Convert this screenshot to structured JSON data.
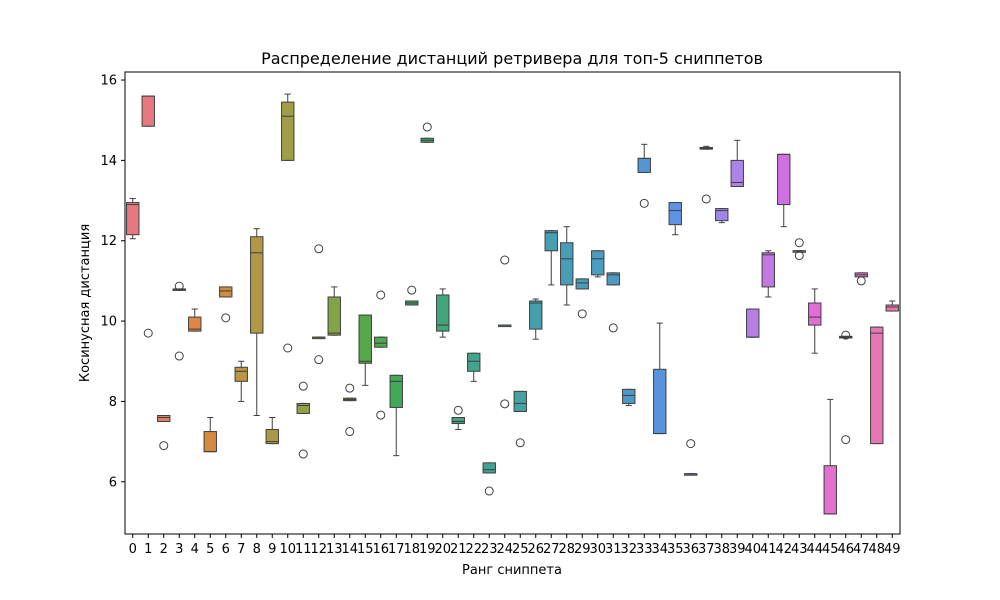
{
  "chart_data": {
    "type": "box",
    "title": "Распределение дистанций ретривера для топ-5 сниппетов",
    "xlabel": "Ранг сниппета",
    "ylabel": "Косинусная дистанция",
    "ylim": [
      4.7,
      16.2
    ],
    "yticks": [
      6,
      8,
      10,
      12,
      14,
      16
    ],
    "grid": false,
    "legend": "none",
    "categories": [
      "0",
      "1",
      "2",
      "3",
      "4",
      "5",
      "6",
      "7",
      "8",
      "9",
      "10",
      "11",
      "12",
      "13",
      "14",
      "15",
      "16",
      "17",
      "18",
      "19",
      "20",
      "21",
      "22",
      "23",
      "24",
      "25",
      "26",
      "27",
      "28",
      "29",
      "30",
      "31",
      "32",
      "33",
      "34",
      "35",
      "36",
      "37",
      "38",
      "39",
      "40",
      "41",
      "42",
      "43",
      "44",
      "45",
      "46",
      "47",
      "48",
      "49"
    ],
    "boxes": [
      {
        "rank": "0",
        "color": "#e8787f",
        "min": 12.05,
        "q1": 12.15,
        "median": 12.9,
        "q3": 12.95,
        "max": 13.05,
        "outliers": []
      },
      {
        "rank": "1",
        "color": "#e8787f",
        "min": 14.85,
        "q1": 14.85,
        "median": 15.6,
        "q3": 15.6,
        "max": 15.6,
        "outliers": [
          9.7
        ]
      },
      {
        "rank": "2",
        "color": "#e57d64",
        "min": 7.5,
        "q1": 7.5,
        "median": 7.6,
        "q3": 7.65,
        "max": 7.65,
        "outliers": [
          6.9
        ]
      },
      {
        "rank": "3",
        "color": "#e0844c",
        "min": 10.78,
        "q1": 10.78,
        "median": 10.79,
        "q3": 10.8,
        "max": 10.8,
        "outliers": [
          10.87,
          9.13
        ]
      },
      {
        "rank": "4",
        "color": "#de8745",
        "min": 9.75,
        "q1": 9.75,
        "median": 9.8,
        "q3": 10.1,
        "max": 10.3,
        "outliers": []
      },
      {
        "rank": "5",
        "color": "#d48b40",
        "min": 6.75,
        "q1": 6.75,
        "median": 6.75,
        "q3": 7.25,
        "max": 7.6,
        "outliers": []
      },
      {
        "rank": "6",
        "color": "#cc8f42",
        "min": 10.6,
        "q1": 10.6,
        "median": 10.75,
        "q3": 10.85,
        "max": 10.85,
        "outliers": [
          10.08
        ]
      },
      {
        "rank": "7",
        "color": "#bf9444",
        "min": 8.0,
        "q1": 8.5,
        "median": 8.75,
        "q3": 8.85,
        "max": 9.0,
        "outliers": []
      },
      {
        "rank": "8",
        "color": "#b29846",
        "min": 7.65,
        "q1": 9.7,
        "median": 11.7,
        "q3": 12.1,
        "max": 12.3,
        "outliers": []
      },
      {
        "rank": "9",
        "color": "#aa9a47",
        "min": 6.95,
        "q1": 6.95,
        "median": 7.0,
        "q3": 7.3,
        "max": 7.6,
        "outliers": []
      },
      {
        "rank": "10",
        "color": "#a09c48",
        "min": 14.0,
        "q1": 14.0,
        "median": 15.1,
        "q3": 15.45,
        "max": 15.65,
        "outliers": [
          9.33
        ]
      },
      {
        "rank": "11",
        "color": "#959f48",
        "min": 7.7,
        "q1": 7.7,
        "median": 7.9,
        "q3": 7.95,
        "max": 7.95,
        "outliers": [
          8.38,
          6.69
        ]
      },
      {
        "rank": "12",
        "color": "#8ba148",
        "min": 9.6,
        "q1": 9.6,
        "median": 9.6,
        "q3": 9.6,
        "max": 9.6,
        "outliers": [
          11.8,
          9.04
        ]
      },
      {
        "rank": "13",
        "color": "#82a348",
        "min": 9.65,
        "q1": 9.65,
        "median": 9.7,
        "q3": 10.6,
        "max": 10.85,
        "outliers": []
      },
      {
        "rank": "14",
        "color": "#6aa647",
        "min": 8.02,
        "q1": 8.02,
        "median": 8.05,
        "q3": 8.08,
        "max": 8.08,
        "outliers": [
          8.33,
          7.25
        ]
      },
      {
        "rank": "15",
        "color": "#58a84b",
        "min": 8.4,
        "q1": 8.95,
        "median": 9.0,
        "q3": 10.15,
        "max": 10.15,
        "outliers": []
      },
      {
        "rank": "16",
        "color": "#4ba951",
        "min": 9.35,
        "q1": 9.35,
        "median": 9.45,
        "q3": 9.6,
        "max": 9.6,
        "outliers": [
          10.65,
          7.66
        ]
      },
      {
        "rank": "17",
        "color": "#43a957",
        "min": 6.65,
        "q1": 7.85,
        "median": 8.5,
        "q3": 8.65,
        "max": 8.65,
        "outliers": []
      },
      {
        "rank": "18",
        "color": "#42a865",
        "min": 10.4,
        "q1": 10.4,
        "median": 10.45,
        "q3": 10.5,
        "max": 10.5,
        "outliers": [
          10.77
        ]
      },
      {
        "rank": "19",
        "color": "#42a770",
        "min": 14.45,
        "q1": 14.45,
        "median": 14.5,
        "q3": 14.55,
        "max": 14.55,
        "outliers": [
          14.83
        ]
      },
      {
        "rank": "20",
        "color": "#42a67b",
        "min": 9.6,
        "q1": 9.75,
        "median": 9.9,
        "q3": 10.65,
        "max": 10.8,
        "outliers": []
      },
      {
        "rank": "21",
        "color": "#43a585",
        "min": 7.3,
        "q1": 7.45,
        "median": 7.5,
        "q3": 7.6,
        "max": 7.6,
        "outliers": [
          7.78
        ]
      },
      {
        "rank": "22",
        "color": "#43a48d",
        "min": 8.5,
        "q1": 8.75,
        "median": 9.0,
        "q3": 9.2,
        "max": 9.2,
        "outliers": []
      },
      {
        "rank": "23",
        "color": "#44a395",
        "min": 6.22,
        "q1": 6.22,
        "median": 6.3,
        "q3": 6.47,
        "max": 6.47,
        "outliers": [
          5.77
        ]
      },
      {
        "rank": "24",
        "color": "#44a29c",
        "min": 9.9,
        "q1": 9.9,
        "median": 9.9,
        "q3": 9.9,
        "max": 9.9,
        "outliers": [
          11.52,
          7.94
        ]
      },
      {
        "rank": "25",
        "color": "#45a1a3",
        "min": 7.75,
        "q1": 7.75,
        "median": 7.95,
        "q3": 8.25,
        "max": 8.25,
        "outliers": [
          6.97
        ]
      },
      {
        "rank": "26",
        "color": "#46a0aa",
        "min": 9.55,
        "q1": 9.8,
        "median": 10.45,
        "q3": 10.5,
        "max": 10.55,
        "outliers": []
      },
      {
        "rank": "27",
        "color": "#479fb1",
        "min": 10.9,
        "q1": 11.75,
        "median": 12.2,
        "q3": 12.25,
        "max": 12.25,
        "outliers": []
      },
      {
        "rank": "28",
        "color": "#489eb7",
        "min": 10.4,
        "q1": 10.9,
        "median": 11.55,
        "q3": 11.95,
        "max": 12.35,
        "outliers": []
      },
      {
        "rank": "29",
        "color": "#499dbc",
        "min": 10.8,
        "q1": 10.8,
        "median": 10.95,
        "q3": 11.05,
        "max": 11.05,
        "outliers": [
          10.18
        ]
      },
      {
        "rank": "30",
        "color": "#4a9cc1",
        "min": 11.1,
        "q1": 11.15,
        "median": 11.55,
        "q3": 11.75,
        "max": 11.75,
        "outliers": []
      },
      {
        "rank": "31",
        "color": "#4c9ac6",
        "min": 10.9,
        "q1": 10.9,
        "median": 11.15,
        "q3": 11.2,
        "max": 11.2,
        "outliers": [
          9.83
        ]
      },
      {
        "rank": "32",
        "color": "#4f98cc",
        "min": 7.9,
        "q1": 7.95,
        "median": 8.15,
        "q3": 8.3,
        "max": 8.3,
        "outliers": []
      },
      {
        "rank": "33",
        "color": "#5296d3",
        "min": 13.7,
        "q1": 13.7,
        "median": 14.05,
        "q3": 14.05,
        "max": 14.4,
        "outliers": [
          12.93
        ]
      },
      {
        "rank": "34",
        "color": "#5794dc",
        "min": 7.2,
        "q1": 7.2,
        "median": 7.2,
        "q3": 8.8,
        "max": 9.95,
        "outliers": []
      },
      {
        "rank": "35",
        "color": "#5e92e4",
        "min": 12.15,
        "q1": 12.4,
        "median": 12.75,
        "q3": 12.95,
        "max": 12.95,
        "outliers": []
      },
      {
        "rank": "36",
        "color": "#7a8ee8",
        "min": 6.2,
        "q1": 6.2,
        "median": 6.2,
        "q3": 6.2,
        "max": 6.2,
        "outliers": [
          6.95
        ]
      },
      {
        "rank": "37",
        "color": "#8e8ae8",
        "min": 14.28,
        "q1": 14.28,
        "median": 14.3,
        "q3": 14.32,
        "max": 14.35,
        "outliers": [
          13.04
        ]
      },
      {
        "rank": "38",
        "color": "#9e87e8",
        "min": 12.45,
        "q1": 12.5,
        "median": 12.75,
        "q3": 12.8,
        "max": 12.8,
        "outliers": []
      },
      {
        "rank": "39",
        "color": "#ac83e8",
        "min": 13.35,
        "q1": 13.35,
        "median": 13.45,
        "q3": 14.0,
        "max": 14.5,
        "outliers": []
      },
      {
        "rank": "40",
        "color": "#b77ee7",
        "min": 9.6,
        "q1": 9.6,
        "median": 9.6,
        "q3": 10.3,
        "max": 10.3,
        "outliers": []
      },
      {
        "rank": "41",
        "color": "#c378e6",
        "min": 10.6,
        "q1": 10.85,
        "median": 11.65,
        "q3": 11.7,
        "max": 11.75,
        "outliers": []
      },
      {
        "rank": "42",
        "color": "#d06fe4",
        "min": 12.35,
        "q1": 12.9,
        "median": 14.15,
        "q3": 14.15,
        "max": 14.15,
        "outliers": []
      },
      {
        "rank": "43",
        "color": "#db6de0",
        "min": 11.75,
        "q1": 11.75,
        "median": 11.75,
        "q3": 11.75,
        "max": 11.75,
        "outliers": [
          11.95,
          11.63
        ]
      },
      {
        "rank": "44",
        "color": "#e26dd7",
        "min": 9.2,
        "q1": 9.9,
        "median": 10.1,
        "q3": 10.45,
        "max": 10.8,
        "outliers": []
      },
      {
        "rank": "45",
        "color": "#e36fce",
        "min": 5.2,
        "q1": 5.2,
        "median": 5.2,
        "q3": 6.4,
        "max": 8.05,
        "outliers": []
      },
      {
        "rank": "46",
        "color": "#e572c5",
        "min": 9.58,
        "q1": 9.58,
        "median": 9.6,
        "q3": 9.62,
        "max": 9.62,
        "outliers": [
          9.65,
          7.05
        ]
      },
      {
        "rank": "47",
        "color": "#e674bd",
        "min": 11.1,
        "q1": 11.1,
        "median": 11.15,
        "q3": 11.2,
        "max": 11.2,
        "outliers": [
          11.0
        ]
      },
      {
        "rank": "48",
        "color": "#e776b4",
        "min": 6.95,
        "q1": 6.95,
        "median": 9.7,
        "q3": 9.85,
        "max": 9.85,
        "outliers": []
      },
      {
        "rank": "49",
        "color": "#e87aa8",
        "min": 10.25,
        "q1": 10.25,
        "median": 10.35,
        "q3": 10.4,
        "max": 10.5,
        "outliers": []
      }
    ]
  }
}
